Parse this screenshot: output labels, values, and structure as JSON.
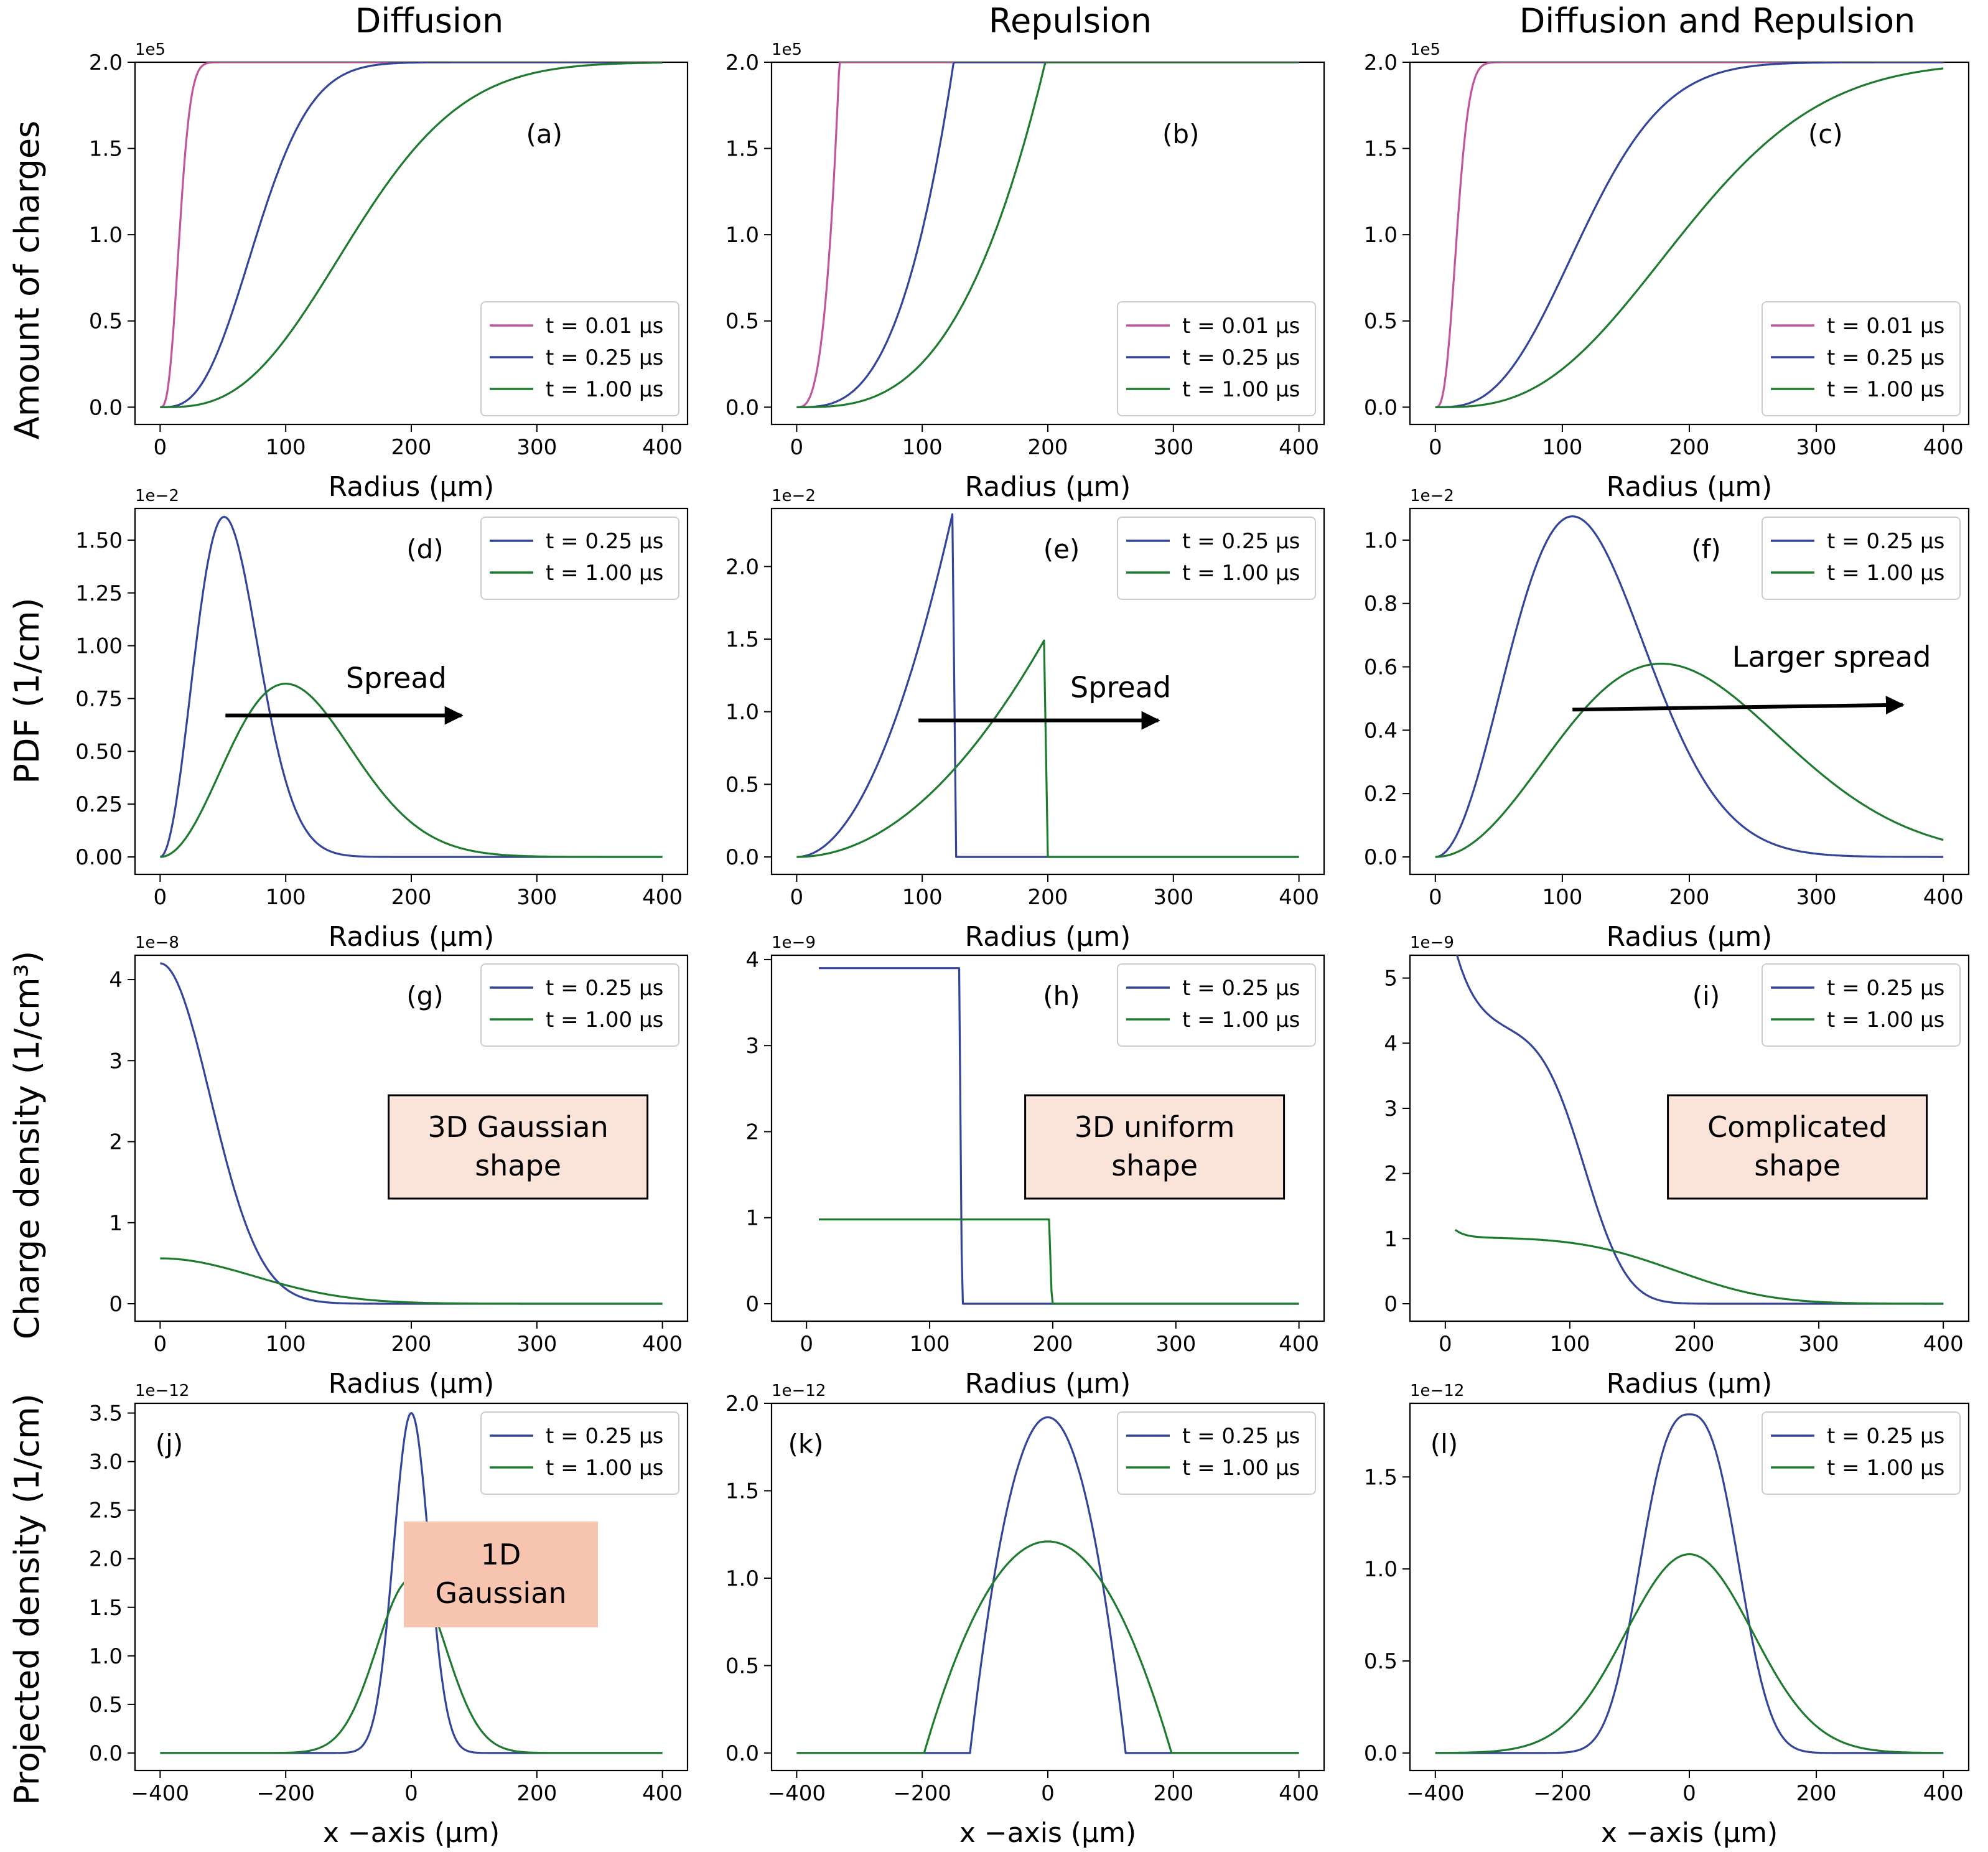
{
  "figure": {
    "column_titles": [
      "Diffusion",
      "Repulsion",
      "Diffusion and Repulsion"
    ],
    "row_labels": [
      "Amount of charges",
      "PDF (1/cm)",
      "Charge density (1/cm³)",
      "Projected density (1/cm)"
    ]
  },
  "colors": {
    "t001": "#c0559b",
    "t025": "#33449a",
    "t100": "#1e7a2e",
    "box_fill": "#fae3d9",
    "box_fill_j": "#f7c4b0"
  },
  "chart_data": [
    {
      "id": "a",
      "type": "line",
      "panel_label": "(a)",
      "xlabel": "Radius (μm)",
      "xlim": [
        0,
        400
      ],
      "xticks": [
        0,
        100,
        200,
        300,
        400
      ],
      "ylim": [
        0,
        2.0
      ],
      "yticks": [
        0,
        0.5,
        1.0,
        1.5,
        2.0
      ],
      "scale_label": "1e5",
      "legend": {
        "position": "lower-right"
      },
      "series": [
        {
          "name": "t = 0.01 μs",
          "color": "#c0559b",
          "kind": "cdf_gauss",
          "sigma": 10,
          "amp": 2.0
        },
        {
          "name": "t = 0.25 μs",
          "color": "#33449a",
          "kind": "cdf_gauss",
          "sigma": 50,
          "amp": 2.0
        },
        {
          "name": "t = 1.00 μs",
          "color": "#1e7a2e",
          "kind": "cdf_gauss",
          "sigma": 100,
          "amp": 2.0
        }
      ]
    },
    {
      "id": "b",
      "type": "line",
      "panel_label": "(b)",
      "xlabel": "Radius (μm)",
      "xlim": [
        0,
        400
      ],
      "xticks": [
        0,
        100,
        200,
        300,
        400
      ],
      "ylim": [
        0,
        2.0
      ],
      "yticks": [
        0,
        0.5,
        1.0,
        1.5,
        2.0
      ],
      "scale_label": "1e5",
      "legend": {
        "position": "lower-right"
      },
      "series": [
        {
          "name": "t = 0.01 μs",
          "color": "#c0559b",
          "kind": "cdf_uniform",
          "R": 34,
          "amp": 2.0
        },
        {
          "name": "t = 0.25 μs",
          "color": "#33449a",
          "kind": "cdf_uniform",
          "R": 125,
          "amp": 2.0
        },
        {
          "name": "t = 1.00 μs",
          "color": "#1e7a2e",
          "kind": "cdf_uniform",
          "R": 198,
          "amp": 2.0
        }
      ]
    },
    {
      "id": "c",
      "type": "line",
      "panel_label": "(c)",
      "xlabel": "Radius (μm)",
      "xlim": [
        0,
        400
      ],
      "xticks": [
        0,
        100,
        200,
        300,
        400
      ],
      "ylim": [
        0,
        2.0
      ],
      "yticks": [
        0,
        0.5,
        1.0,
        1.5,
        2.0
      ],
      "scale_label": "1e5",
      "legend": {
        "position": "lower-right"
      },
      "series": [
        {
          "name": "t = 0.01 μs",
          "color": "#c0559b",
          "kind": "cdf_gauss",
          "sigma": 11,
          "amp": 2.0
        },
        {
          "name": "t = 0.25 μs",
          "color": "#33449a",
          "kind": "cdf_gauss",
          "sigma": 75,
          "amp": 2.0
        },
        {
          "name": "t = 1.00 μs",
          "color": "#1e7a2e",
          "kind": "cdf_gauss",
          "sigma": 126,
          "amp": 2.0
        }
      ]
    },
    {
      "id": "d",
      "type": "line",
      "panel_label": "(d)",
      "xlabel": "Radius (μm)",
      "xlim": [
        0,
        400
      ],
      "xticks": [
        0,
        100,
        200,
        300,
        400
      ],
      "ylim": [
        0,
        1.65
      ],
      "yticks": [
        0,
        0.25,
        0.5,
        0.75,
        1.0,
        1.25,
        1.5
      ],
      "ytick_labels": [
        "0.00",
        "0.25",
        "0.50",
        "0.75",
        "1.00",
        "1.25",
        "1.50"
      ],
      "scale_label": "1e−2",
      "legend": {
        "position": "top-right"
      },
      "series": [
        {
          "name": "t = 0.25 μs",
          "color": "#33449a",
          "kind": "maxwell",
          "peak_x": 51,
          "peak": 1.61
        },
        {
          "name": "t = 1.00 μs",
          "color": "#1e7a2e",
          "kind": "maxwell",
          "peak_x": 100,
          "peak": 0.82
        }
      ],
      "annotations": [
        {
          "text": "Spread",
          "type": "arrow",
          "from": [
            52,
            0.67
          ],
          "to": [
            240,
            0.67
          ],
          "text_at": [
            188,
            0.8
          ]
        }
      ]
    },
    {
      "id": "e",
      "type": "line",
      "panel_label": "(e)",
      "xlabel": "Radius (μm)",
      "xlim": [
        0,
        400
      ],
      "xticks": [
        0,
        100,
        200,
        300,
        400
      ],
      "ylim": [
        0,
        2.4
      ],
      "yticks": [
        0,
        0.5,
        1.0,
        1.5,
        2.0
      ],
      "ytick_labels": [
        "0.0",
        "0.5",
        "1.0",
        "1.5",
        "2.0"
      ],
      "scale_label": "1e−2",
      "legend": {
        "position": "top-right"
      },
      "series": [
        {
          "name": "t = 0.25 μs",
          "color": "#33449a",
          "kind": "pdf_uniform",
          "R": 124,
          "peak": 2.36
        },
        {
          "name": "t = 1.00 μs",
          "color": "#1e7a2e",
          "kind": "pdf_uniform",
          "R": 197,
          "peak": 1.49
        }
      ],
      "annotations": [
        {
          "text": "Spread",
          "type": "arrow",
          "from": [
            97,
            0.94
          ],
          "to": [
            288,
            0.94
          ],
          "text_at": [
            258,
            1.1
          ]
        }
      ]
    },
    {
      "id": "f",
      "type": "line",
      "panel_label": "(f)",
      "xlabel": "Radius (μm)",
      "xlim": [
        0,
        400
      ],
      "xticks": [
        0,
        100,
        200,
        300,
        400
      ],
      "ylim": [
        0,
        1.1
      ],
      "yticks": [
        0,
        0.2,
        0.4,
        0.6,
        0.8,
        1.0
      ],
      "ytick_labels": [
        "0.0",
        "0.2",
        "0.4",
        "0.6",
        "0.8",
        "1.0"
      ],
      "scale_label": "1e−2",
      "legend": {
        "position": "top-right"
      },
      "series": [
        {
          "name": "t = 0.25 μs",
          "color": "#33449a",
          "kind": "maxwell",
          "peak_x": 108,
          "peak": 1.075
        },
        {
          "name": "t = 1.00 μs",
          "color": "#1e7a2e",
          "kind": "maxwell",
          "peak_x": 178,
          "peak": 0.61
        }
      ],
      "annotations": [
        {
          "text": "Larger spread",
          "type": "arrow",
          "from": [
            108,
            0.465
          ],
          "to": [
            368,
            0.48
          ],
          "text_at": [
            312,
            0.6
          ]
        }
      ]
    },
    {
      "id": "g",
      "type": "line",
      "panel_label": "(g)",
      "xlabel": "Radius (μm)",
      "xlim": [
        0,
        400
      ],
      "xticks": [
        0,
        100,
        200,
        300,
        400
      ],
      "ylim": [
        0,
        4.3
      ],
      "yticks": [
        0,
        1,
        2,
        3,
        4
      ],
      "scale_label": "1e−8",
      "legend": {
        "position": "top-right"
      },
      "series": [
        {
          "name": "t = 0.25 μs",
          "color": "#33449a",
          "kind": "gauss3d",
          "sigma": 40,
          "peak": 4.2
        },
        {
          "name": "t = 1.00 μs",
          "color": "#1e7a2e",
          "kind": "gauss3d",
          "sigma": 75,
          "peak": 0.56
        }
      ],
      "annotations": [
        {
          "text": [
            "3D Gaussian",
            "shape"
          ],
          "type": "box"
        }
      ]
    },
    {
      "id": "h",
      "type": "line",
      "panel_label": "(h)",
      "xlabel": "Radius (μm)",
      "xlim": [
        -8,
        400
      ],
      "xticks": [
        0,
        100,
        200,
        300,
        400
      ],
      "ylim": [
        0,
        4.05
      ],
      "yticks": [
        0,
        1,
        2,
        3,
        4
      ],
      "scale_label": "1e−9",
      "legend": {
        "position": "top-right"
      },
      "series": [
        {
          "name": "t = 0.25 μs",
          "color": "#33449a",
          "kind": "step",
          "x0": 10,
          "R": 124,
          "level": 3.9
        },
        {
          "name": "t = 1.00 μs",
          "color": "#1e7a2e",
          "kind": "step",
          "x0": 10,
          "R": 197,
          "level": 0.98
        }
      ],
      "annotations": [
        {
          "text": [
            "3D uniform",
            "shape"
          ],
          "type": "box"
        }
      ]
    },
    {
      "id": "i",
      "type": "line",
      "panel_label": "(i)",
      "xlabel": "Radius (μm)",
      "xlim": [
        -8,
        400
      ],
      "xticks": [
        0,
        100,
        200,
        300,
        400
      ],
      "ylim": [
        0,
        5.35
      ],
      "yticks": [
        0,
        1,
        2,
        3,
        4,
        5
      ],
      "scale_label": "1e−9",
      "legend": {
        "position": "top-right"
      },
      "series": [
        {
          "name": "t = 0.25 μs",
          "color": "#33449a",
          "kind": "complex_a",
          "x0": 8
        },
        {
          "name": "t = 1.00 μs",
          "color": "#1e7a2e",
          "kind": "complex_b",
          "x0": 8
        }
      ],
      "annotations": [
        {
          "text": [
            "Complicated",
            "shape"
          ],
          "type": "box"
        }
      ]
    },
    {
      "id": "j",
      "type": "line",
      "panel_label": "(j)",
      "xlabel": "x −axis (μm)",
      "xlim": [
        -400,
        400
      ],
      "xticks": [
        -400,
        -200,
        0,
        200,
        400
      ],
      "xtick_labels": [
        "−400",
        "−200",
        "0",
        "200",
        "400"
      ],
      "ylim": [
        0,
        3.6
      ],
      "yticks": [
        0,
        0.5,
        1.0,
        1.5,
        2.0,
        2.5,
        3.0,
        3.5
      ],
      "scale_label": "1e−12",
      "legend": {
        "position": "top-right"
      },
      "series": [
        {
          "name": "t = 0.25 μs",
          "color": "#33449a",
          "kind": "gauss1d",
          "sigma": 28,
          "peak": 3.5
        },
        {
          "name": "t = 1.00 μs",
          "color": "#1e7a2e",
          "kind": "gauss1d",
          "sigma": 55,
          "peak": 1.79
        }
      ],
      "annotations": [
        {
          "text": [
            "1D",
            "Gaussian"
          ],
          "type": "box_nolines"
        }
      ]
    },
    {
      "id": "k",
      "type": "line",
      "panel_label": "(k)",
      "xlabel": "x −axis (μm)",
      "xlim": [
        -400,
        400
      ],
      "xticks": [
        -400,
        -200,
        0,
        200,
        400
      ],
      "xtick_labels": [
        "−400",
        "−200",
        "0",
        "200",
        "400"
      ],
      "ylim": [
        0,
        2.0
      ],
      "yticks": [
        0,
        0.5,
        1.0,
        1.5,
        2.0
      ],
      "scale_label": "1e−12",
      "legend": {
        "position": "top-right"
      },
      "series": [
        {
          "name": "t = 0.25 μs",
          "color": "#33449a",
          "kind": "parab",
          "R": 124,
          "peak": 1.92
        },
        {
          "name": "t = 1.00 μs",
          "color": "#1e7a2e",
          "kind": "parab",
          "R": 197,
          "peak": 1.21
        }
      ]
    },
    {
      "id": "l",
      "type": "line",
      "panel_label": "(l)",
      "xlabel": "x −axis (μm)",
      "xlim": [
        -400,
        400
      ],
      "xticks": [
        -400,
        -200,
        0,
        200,
        400
      ],
      "xtick_labels": [
        "−400",
        "−200",
        "0",
        "200",
        "400"
      ],
      "ylim": [
        0,
        1.9
      ],
      "yticks": [
        0,
        0.5,
        1.0,
        1.5
      ],
      "scale_label": "1e−12",
      "legend": {
        "position": "top-right"
      },
      "series": [
        {
          "name": "t = 0.25 μs",
          "color": "#33449a",
          "kind": "gauss1d_flat",
          "sigma": 62,
          "peak": 1.84
        },
        {
          "name": "t = 1.00 μs",
          "color": "#1e7a2e",
          "kind": "gauss1d",
          "sigma": 100,
          "peak": 1.08
        }
      ]
    }
  ]
}
